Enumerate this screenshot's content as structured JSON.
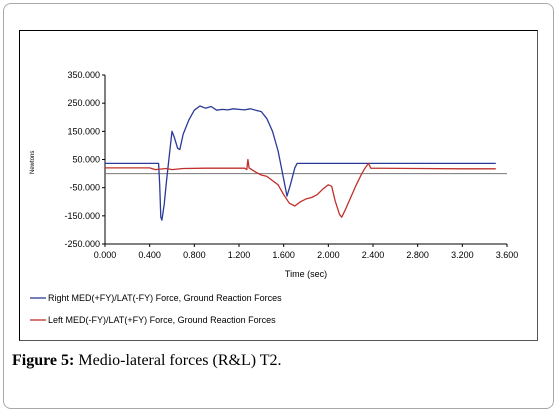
{
  "caption": {
    "label": "Figure 5:",
    "text": "Medio-lateral forces (R&L) T2."
  },
  "chart_data": {
    "type": "line",
    "title": "",
    "xlabel": "Time (sec)",
    "ylabel": "Newtons",
    "xlim": [
      0,
      3.6
    ],
    "ylim": [
      -250,
      350
    ],
    "x_tick_labels": [
      "0.000",
      "0.400",
      "0.800",
      "1.200",
      "1.600",
      "2.000",
      "2.400",
      "2.800",
      "3.200",
      "3.600"
    ],
    "y_tick_labels": [
      "350.000",
      "250.000",
      "150.000",
      "50.000",
      "-50.000",
      "-150.000",
      "-250.000"
    ],
    "legend_position": "below",
    "series": [
      {
        "name": "Right MED(+FY)/LAT(-FY) Force, Ground Reaction Forces",
        "color": "#2b3a9a",
        "points": [
          [
            0.0,
            36
          ],
          [
            0.4,
            36
          ],
          [
            0.48,
            36
          ],
          [
            0.49,
            -40
          ],
          [
            0.5,
            -155
          ],
          [
            0.51,
            -165
          ],
          [
            0.53,
            -110
          ],
          [
            0.55,
            -30
          ],
          [
            0.58,
            80
          ],
          [
            0.6,
            150
          ],
          [
            0.62,
            130
          ],
          [
            0.65,
            90
          ],
          [
            0.67,
            85
          ],
          [
            0.7,
            140
          ],
          [
            0.75,
            190
          ],
          [
            0.8,
            225
          ],
          [
            0.85,
            240
          ],
          [
            0.9,
            232
          ],
          [
            0.95,
            238
          ],
          [
            1.0,
            225
          ],
          [
            1.05,
            228
          ],
          [
            1.1,
            226
          ],
          [
            1.15,
            230
          ],
          [
            1.2,
            228
          ],
          [
            1.25,
            226
          ],
          [
            1.3,
            230
          ],
          [
            1.35,
            225
          ],
          [
            1.4,
            220
          ],
          [
            1.45,
            195
          ],
          [
            1.5,
            150
          ],
          [
            1.55,
            80
          ],
          [
            1.6,
            -20
          ],
          [
            1.63,
            -80
          ],
          [
            1.66,
            -40
          ],
          [
            1.7,
            20
          ],
          [
            1.72,
            36
          ],
          [
            2.0,
            36
          ],
          [
            2.4,
            36
          ],
          [
            2.8,
            36
          ],
          [
            3.2,
            36
          ],
          [
            3.5,
            36
          ]
        ]
      },
      {
        "name": "Left MED(-FY)/LAT(+FY) Force, Ground Reaction Forces",
        "color": "#c0302a",
        "points": [
          [
            0.0,
            20
          ],
          [
            0.4,
            20
          ],
          [
            0.45,
            14
          ],
          [
            0.55,
            18
          ],
          [
            0.6,
            14
          ],
          [
            0.7,
            18
          ],
          [
            0.9,
            19
          ],
          [
            1.1,
            19
          ],
          [
            1.25,
            19
          ],
          [
            1.27,
            14
          ],
          [
            1.28,
            50
          ],
          [
            1.29,
            20
          ],
          [
            1.35,
            5
          ],
          [
            1.4,
            -5
          ],
          [
            1.45,
            -10
          ],
          [
            1.5,
            -25
          ],
          [
            1.55,
            -40
          ],
          [
            1.6,
            -75
          ],
          [
            1.65,
            -105
          ],
          [
            1.7,
            -115
          ],
          [
            1.75,
            -100
          ],
          [
            1.8,
            -90
          ],
          [
            1.85,
            -85
          ],
          [
            1.9,
            -75
          ],
          [
            1.95,
            -55
          ],
          [
            2.0,
            -40
          ],
          [
            2.03,
            -45
          ],
          [
            2.06,
            -95
          ],
          [
            2.1,
            -145
          ],
          [
            2.12,
            -155
          ],
          [
            2.15,
            -130
          ],
          [
            2.2,
            -85
          ],
          [
            2.25,
            -40
          ],
          [
            2.3,
            0
          ],
          [
            2.33,
            20
          ],
          [
            2.36,
            36
          ],
          [
            2.38,
            19
          ],
          [
            2.8,
            18
          ],
          [
            3.2,
            17
          ],
          [
            3.5,
            17
          ]
        ]
      }
    ],
    "baseline_y": 0
  }
}
